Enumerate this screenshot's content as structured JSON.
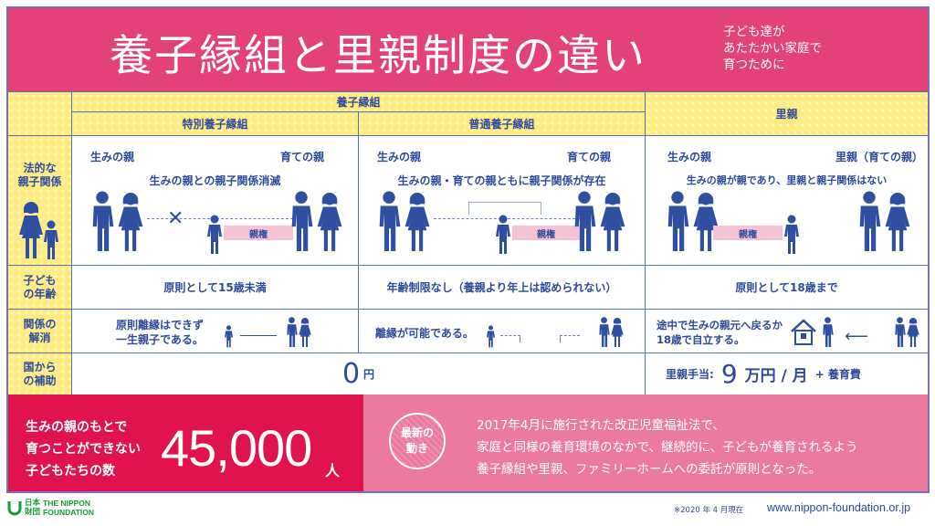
{
  "title": "養子縁組と里親制度の違い",
  "subtitle": [
    "子ども達が",
    "あたたかい家庭で",
    "育つために"
  ],
  "headers": {
    "adoption": "養子縁組",
    "special": "特別養子縁組",
    "ordinary": "普通養子縁組",
    "foster": "里親"
  },
  "row_labels": {
    "legal": [
      "法的な",
      "親子関係"
    ],
    "age": [
      "子ども",
      "の年齢"
    ],
    "dissolution": [
      "関係の",
      "解消"
    ],
    "subsidy": [
      "国から",
      "の補助"
    ]
  },
  "legal": {
    "special": {
      "birth": "生みの親",
      "raising": "育ての親",
      "desc": "生みの親との親子関係消滅",
      "custody": "親権"
    },
    "ordinary": {
      "birth": "生みの親",
      "raising": "育ての親",
      "desc": "生みの親・育ての親ともに親子関係が存在",
      "custody": "親権"
    },
    "foster": {
      "birth": "生みの親",
      "raising": "里親（育ての親）",
      "desc": "生みの親が親であり、里親と親子関係はない",
      "custody": "親権"
    }
  },
  "age": {
    "special": "原則として15歳未満",
    "ordinary": "年齢制限なし（養親より年上は認められない）",
    "foster": "原則として18歳まで"
  },
  "dissolution": {
    "special": [
      "原則離縁はできず",
      "一生親子である。"
    ],
    "ordinary": "離縁が可能である。",
    "foster": [
      "途中で生みの親元へ戻るか",
      "18歳で自立する。"
    ]
  },
  "subsidy": {
    "adoption_amount": "0",
    "adoption_unit": "円",
    "foster_label": "里親手当:",
    "foster_amount": "9",
    "foster_unit": "万円 / 月",
    "foster_extra": "+ 養育費"
  },
  "stat": {
    "text": [
      "生みの親のもとで",
      "育つことができない",
      "子どもたちの数"
    ],
    "number": "45,000",
    "unit": "人"
  },
  "news": {
    "badge": [
      "最新の",
      "動き"
    ],
    "text": [
      "2017年4月に施行された改正児童福祉法で、",
      "家庭と同様の養育環境のなかで、継続的に、子どもが養育されるよう",
      "養子縁組や里親、ファミリーホームへの委託が原則となった。"
    ]
  },
  "footer": {
    "logo_jp": [
      "日本",
      "財団"
    ],
    "logo_en": [
      "THE NIPPON",
      "FOUNDATION"
    ],
    "date": "※2020 年 4 月現在",
    "url": "www.nippon-foundation.or.jp"
  },
  "colors": {
    "banner": "#e4417a",
    "crimson": "#e0134f",
    "pink": "#ec7aa0",
    "navy": "#2f4fa0",
    "yellow": "#fdeb83",
    "green": "#1a9a3a"
  }
}
